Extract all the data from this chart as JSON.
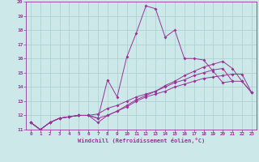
{
  "xlabel": "Windchill (Refroidissement éolien,°C)",
  "xlim": [
    -0.5,
    23.5
  ],
  "ylim": [
    11,
    20
  ],
  "xticks": [
    0,
    1,
    2,
    3,
    4,
    5,
    6,
    7,
    8,
    9,
    10,
    11,
    12,
    13,
    14,
    15,
    16,
    17,
    18,
    19,
    20,
    21,
    22,
    23
  ],
  "yticks": [
    11,
    12,
    13,
    14,
    15,
    16,
    17,
    18,
    19,
    20
  ],
  "color": "#993399",
  "bg_color": "#cce8e8",
  "grid_color": "#aacece",
  "series": [
    [
      11.5,
      11.0,
      11.5,
      11.8,
      11.9,
      12.0,
      12.0,
      11.8,
      14.5,
      13.3,
      16.1,
      17.8,
      19.7,
      19.5,
      17.5,
      18.0,
      16.0,
      16.0,
      15.9,
      15.1,
      14.3,
      14.4,
      null,
      null
    ],
    [
      11.5,
      11.0,
      11.5,
      11.8,
      11.9,
      12.0,
      12.0,
      11.5,
      12.0,
      12.3,
      12.6,
      13.0,
      13.3,
      13.5,
      13.7,
      14.0,
      14.2,
      14.4,
      14.6,
      14.7,
      14.8,
      14.9,
      14.9,
      13.6
    ],
    [
      11.5,
      11.0,
      11.5,
      11.8,
      11.9,
      12.0,
      12.0,
      12.1,
      12.5,
      12.7,
      13.0,
      13.3,
      13.5,
      13.7,
      14.0,
      14.3,
      14.5,
      14.8,
      15.0,
      15.2,
      15.3,
      14.4,
      14.4,
      13.6
    ],
    [
      11.5,
      11.0,
      11.5,
      11.8,
      11.9,
      12.0,
      12.0,
      11.8,
      12.0,
      12.3,
      12.7,
      13.1,
      13.4,
      13.7,
      14.1,
      14.4,
      14.8,
      15.1,
      15.4,
      15.6,
      15.8,
      15.3,
      14.4,
      13.6
    ]
  ]
}
